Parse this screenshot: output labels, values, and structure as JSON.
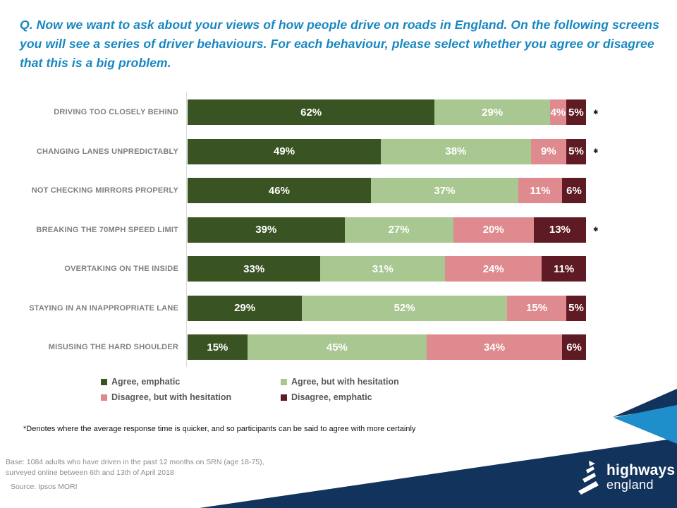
{
  "title": "Q. Now we want to ask about your views of how people drive on roads in England. On the following screens you will see a series of driver behaviours. For each behaviour, please select whether you agree or disagree that this is a big problem.",
  "chart_data": {
    "type": "bar",
    "orientation": "horizontal-stacked",
    "title": "",
    "xlabel": "",
    "ylabel": "",
    "xlim": [
      0,
      100
    ],
    "grid": false,
    "legend_position": "bottom",
    "value_suffix": "%",
    "categories": [
      "DRIVING TOO CLOSELY BEHIND",
      "CHANGING LANES UNPREDICTABLY",
      "NOT CHECKING MIRRORS PROPERLY",
      "BREAKING THE 70MPH SPEED LIMIT",
      "OVERTAKING ON THE INSIDE",
      "STAYING IN AN INAPPROPRIATE LANE",
      "MISUSING THE HARD SHOULDER"
    ],
    "series": [
      {
        "name": "Agree, emphatic",
        "color": "#3A5323",
        "values": [
          62,
          49,
          46,
          39,
          33,
          29,
          15
        ]
      },
      {
        "name": "Agree, but with hesitation",
        "color": "#A9C791",
        "values": [
          29,
          38,
          37,
          27,
          31,
          52,
          45
        ]
      },
      {
        "name": "Disagree, but with hesitation",
        "color": "#DF8A8E",
        "values": [
          4,
          9,
          11,
          20,
          24,
          15,
          34
        ]
      },
      {
        "name": "Disagree, emphatic",
        "color": "#5E1B23",
        "values": [
          5,
          5,
          6,
          13,
          11,
          5,
          6
        ]
      }
    ],
    "asterisk_rows": [
      0,
      1,
      3
    ],
    "asterisk_glyph": "✱"
  },
  "legend": {
    "items": [
      {
        "label": "Agree, emphatic",
        "color": "#3A5323"
      },
      {
        "label": "Agree, but with hesitation",
        "color": "#A9C791"
      },
      {
        "label": "Disagree, but with hesitation",
        "color": "#DF8A8E"
      },
      {
        "label": "Disagree, emphatic",
        "color": "#5E1B23"
      }
    ]
  },
  "footnote": "*Denotes where the average response time is quicker, and so participants can be said to agree with more certainly",
  "footer": {
    "base_line1": "Base: 1084 adults  who have driven in the past 12 months on SRN  (age 18-75),",
    "base_line2": "surveyed online between 6th and 13th of April 2018",
    "source": "Source: Ipsos MORI"
  },
  "logo": {
    "line1": "highways",
    "line2": "england"
  },
  "colors": {
    "title_blue": "#1787C1",
    "navy": "#12335C",
    "light_blue": "#1F8FCB",
    "axis_gray": "#D9D9D9",
    "category_label_gray": "#7F7F7F",
    "legend_text_gray": "#595959",
    "bar_value_text": "#FFFFFF"
  }
}
